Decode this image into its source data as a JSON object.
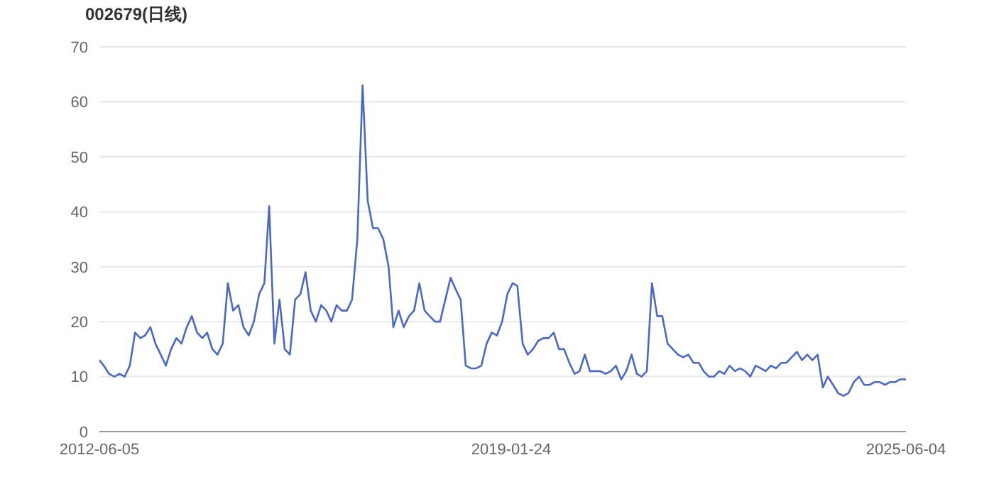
{
  "chart_data": {
    "type": "line",
    "title": "002679(日线)",
    "x": [
      "2012-06-05",
      "2012-07",
      "2012-08",
      "2012-09",
      "2012-10",
      "2012-11",
      "2012-12",
      "2013-01",
      "2013-02",
      "2013-03",
      "2013-04",
      "2013-05",
      "2013-06",
      "2013-07",
      "2013-08",
      "2013-09",
      "2013-10",
      "2013-11",
      "2013-12",
      "2014-01",
      "2014-02",
      "2014-03",
      "2014-04",
      "2014-05",
      "2014-06",
      "2014-07",
      "2014-08",
      "2014-09",
      "2014-10",
      "2014-11",
      "2014-12",
      "2015-01",
      "2015-02",
      "2015-03",
      "2015-04",
      "2015-05",
      "2015-06",
      "2015-07",
      "2015-08",
      "2015-09",
      "2015-10",
      "2015-11",
      "2015-12",
      "2016-01",
      "2016-02",
      "2016-03",
      "2016-04",
      "2016-05",
      "2016-06",
      "2016-07",
      "2016-08",
      "2016-09",
      "2016-10",
      "2016-11",
      "2016-12",
      "2017-01",
      "2017-02",
      "2017-03",
      "2017-04",
      "2017-05",
      "2017-06",
      "2017-07",
      "2017-08",
      "2017-09",
      "2017-10",
      "2017-11",
      "2017-12",
      "2018-01",
      "2018-02",
      "2018-03",
      "2018-04",
      "2018-05",
      "2018-06",
      "2018-07",
      "2018-08",
      "2018-09",
      "2018-10",
      "2018-11",
      "2018-12",
      "2019-01",
      "2019-02",
      "2019-03",
      "2019-04",
      "2019-05",
      "2019-06",
      "2019-07",
      "2019-08",
      "2019-09",
      "2019-10",
      "2019-11",
      "2019-12",
      "2020-01",
      "2020-02",
      "2020-03",
      "2020-04",
      "2020-05",
      "2020-06",
      "2020-07",
      "2020-08",
      "2020-09",
      "2020-10",
      "2020-11",
      "2020-12",
      "2021-01",
      "2021-02",
      "2021-03",
      "2021-04",
      "2021-05",
      "2021-06",
      "2021-07",
      "2021-08",
      "2021-09",
      "2021-10",
      "2021-11",
      "2021-12",
      "2022-01",
      "2022-02",
      "2022-03",
      "2022-04",
      "2022-05",
      "2022-06",
      "2022-07",
      "2022-08",
      "2022-09",
      "2022-10",
      "2022-11",
      "2022-12",
      "2023-01",
      "2023-02",
      "2023-03",
      "2023-04",
      "2023-05",
      "2023-06",
      "2023-07",
      "2023-08",
      "2023-09",
      "2023-10",
      "2023-11",
      "2023-12",
      "2024-01",
      "2024-02",
      "2024-03",
      "2024-04",
      "2024-05",
      "2024-06",
      "2024-07",
      "2024-08",
      "2024-09",
      "2024-10",
      "2024-11",
      "2024-12",
      "2025-01",
      "2025-02",
      "2025-03",
      "2025-04",
      "2025-05",
      "2025-06-04"
    ],
    "series": [
      {
        "color": "#4a68c4",
        "values": [
          13,
          12,
          10.5,
          10,
          10.5,
          10,
          12,
          18,
          17,
          17.5,
          19,
          16,
          14,
          12,
          15,
          17,
          16,
          19,
          21,
          18,
          17,
          18,
          15,
          14,
          16,
          27,
          22,
          23,
          19,
          17.5,
          20,
          25,
          27,
          41,
          16,
          24,
          15,
          14,
          24,
          25,
          29,
          22,
          20,
          23,
          22,
          20,
          23,
          22,
          22,
          24,
          35,
          63,
          42,
          37,
          37,
          35,
          30,
          19,
          22,
          19,
          21,
          22,
          27,
          22,
          21,
          20,
          20,
          24,
          28,
          26,
          24,
          12,
          11.5,
          11.5,
          12,
          16,
          18,
          17.5,
          20,
          25,
          27,
          26.5,
          16,
          14,
          15,
          16.5,
          17,
          17,
          18,
          15,
          15,
          12.5,
          10.5,
          11,
          14,
          11,
          11,
          11,
          10.5,
          11,
          12,
          9.5,
          11,
          14,
          10.5,
          10,
          11,
          27,
          21,
          21,
          16,
          15,
          14,
          13.5,
          14,
          12.5,
          12.5,
          11,
          10,
          10,
          11,
          10.5,
          12,
          11,
          11.5,
          11,
          10,
          12,
          11.5,
          11,
          12,
          11.5,
          12.5,
          12.5,
          13.5,
          14.5,
          13,
          14,
          13,
          14,
          8,
          10,
          8.5,
          7,
          6.5,
          7,
          9,
          10,
          8.5,
          8.5,
          9,
          9,
          8.5,
          9,
          9,
          9.5,
          9.5
        ]
      }
    ],
    "xlim": [
      "2012-06-05",
      "2025-06-04"
    ],
    "xticks": [
      "2012-06-05",
      "2019-01-24",
      "2025-06-04"
    ],
    "ylim": [
      0,
      70
    ],
    "yticks": [
      0,
      10,
      20,
      30,
      40,
      50,
      60,
      70
    ],
    "grid": "y",
    "marker": "none",
    "line_style": "solid"
  }
}
